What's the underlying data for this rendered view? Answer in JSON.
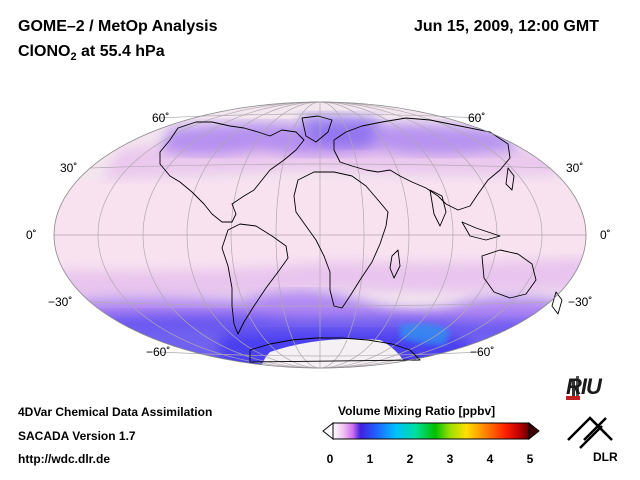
{
  "header": {
    "title": "GOME–2 / MetOp Analysis",
    "species": "ClONO",
    "species_sub": "2",
    "species_level": " at 55.4 hPa",
    "datetime": "Jun 15, 2009, 12:00 GMT"
  },
  "footer": {
    "line1": "4DVar Chemical Data Assimilation",
    "line2": "SACADA Version 1.7",
    "line3": "http://wdc.dlr.de"
  },
  "colorbar": {
    "title": "Volume Mixing Ratio [ppbv]",
    "ticks": [
      "0",
      "1",
      "2",
      "3",
      "4",
      "5"
    ],
    "colors": [
      "#ffffff",
      "#f0c8f0",
      "#d070f0",
      "#4020e0",
      "#2060ff",
      "#00c0ff",
      "#00e0a0",
      "#00c000",
      "#a0e000",
      "#ffe000",
      "#ff8000",
      "#ff2000",
      "#c00000",
      "#600000"
    ]
  },
  "map": {
    "lat_labels": {
      "n60": "60˚",
      "n30": "30˚",
      "eq": "0˚",
      "s30": "−30˚",
      "s60": "−60˚"
    },
    "colors": {
      "background": "#f3e6ee",
      "tropics": "#f8e2f0",
      "midlat": "#e8c8ee",
      "polar_band": "#9a70f0",
      "strong": "#4a40f0",
      "antarctic": "#f5f0f4"
    }
  },
  "logos": {
    "riu": "RIU",
    "dlr": "DLR"
  }
}
